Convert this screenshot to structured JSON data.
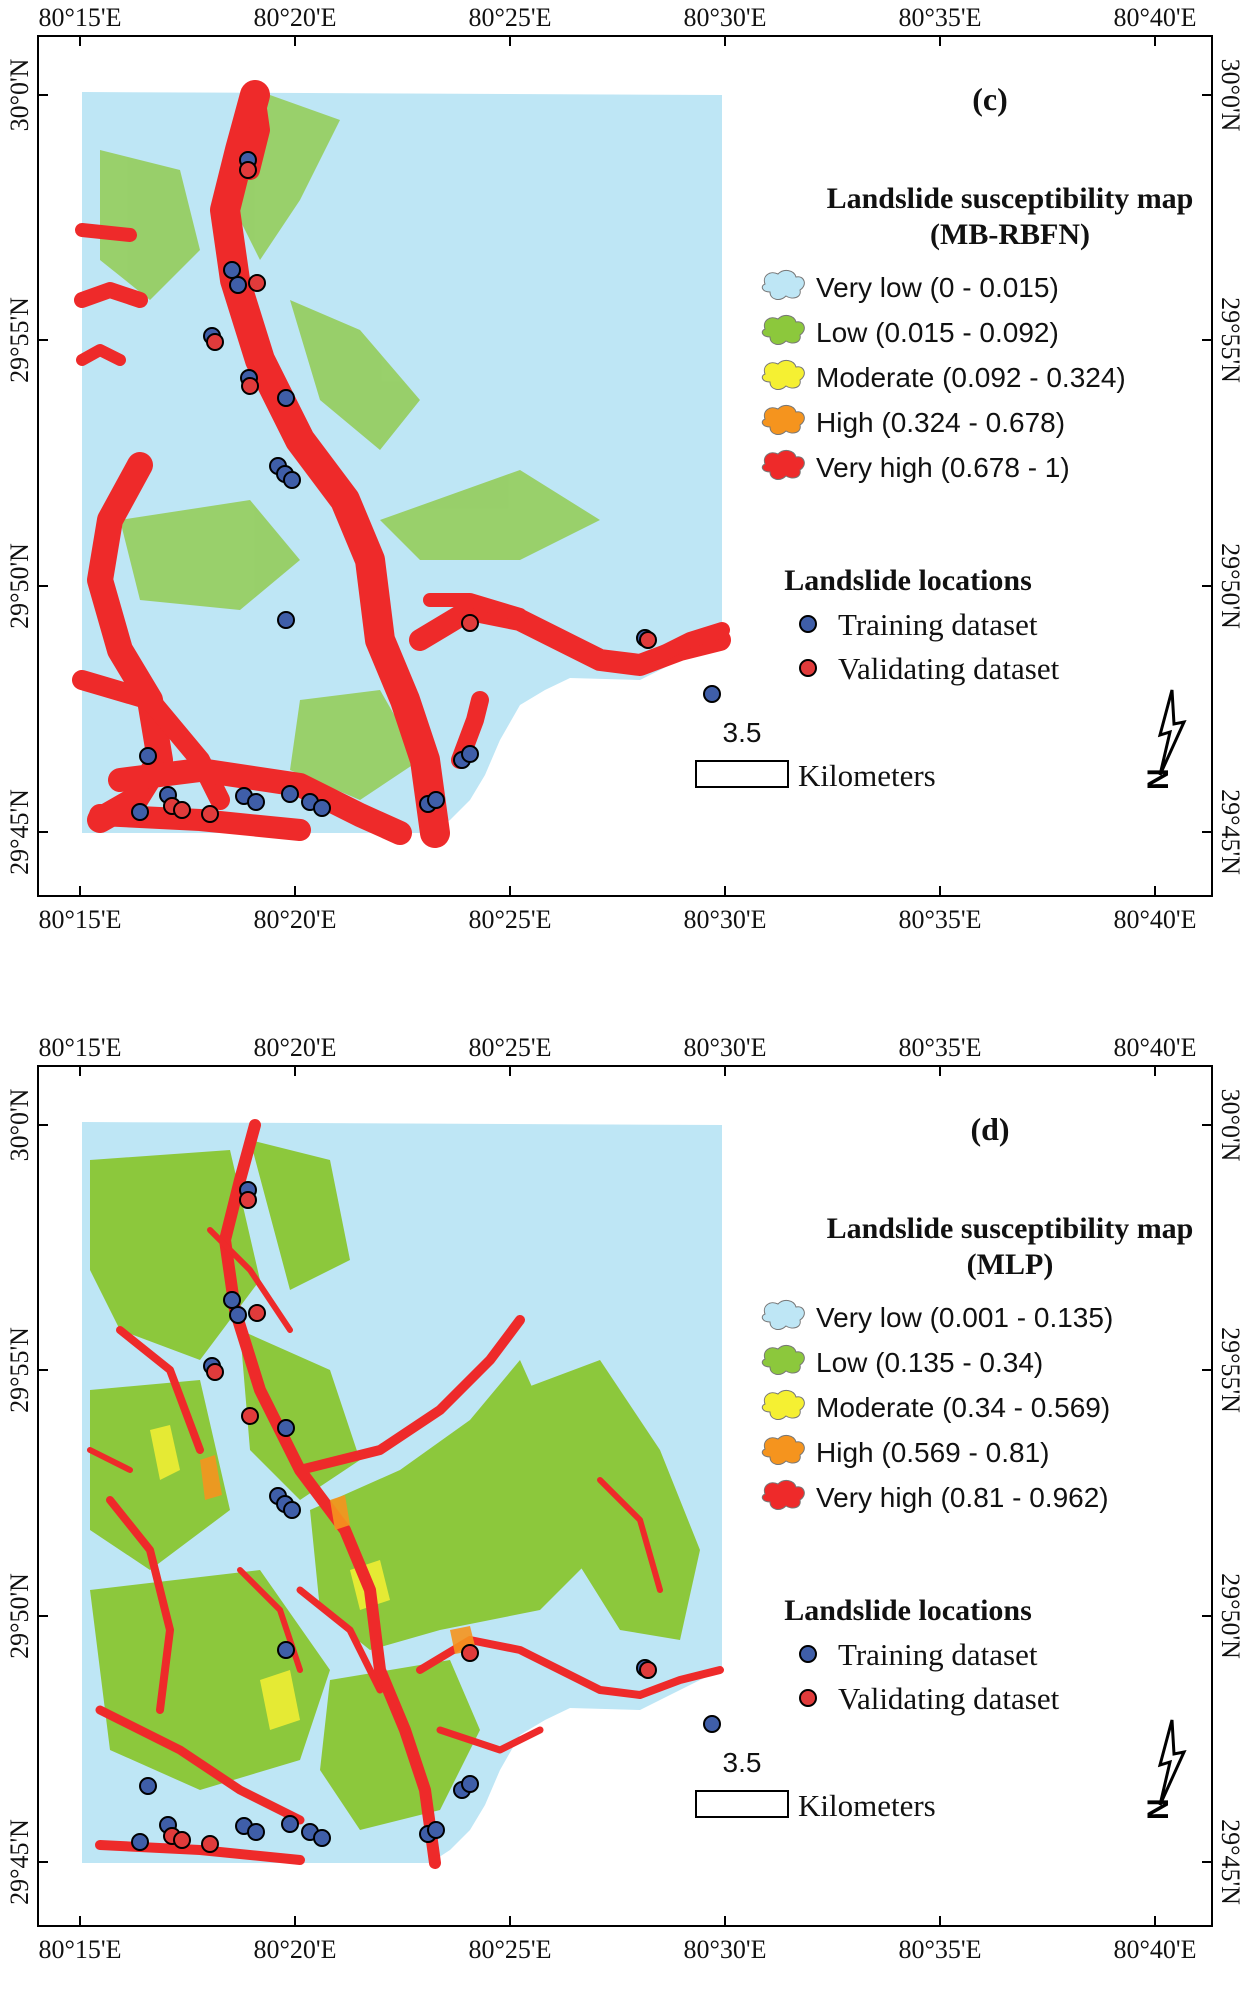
{
  "colors": {
    "very_low": "#bee6f5",
    "low": "#8cc83c",
    "moderate": "#f5f032",
    "high": "#f5941e",
    "very_high": "#ee2a2a",
    "training_point": "#3f5ea8",
    "validating_point": "#e03b3b"
  },
  "axes": {
    "top_labels": [
      "80°15'E",
      "80°20'E",
      "80°25'E",
      "80°30'E",
      "80°35'E",
      "80°40'E"
    ],
    "bottom_labels": [
      "80°15'E",
      "80°20'E",
      "80°25'E",
      "80°30'E",
      "80°35'E",
      "80°40'E"
    ],
    "left_labels": [
      "30°0'N",
      "29°55'N",
      "29°50'N",
      "29°45'N"
    ],
    "right_labels": [
      "30°0'N",
      "29°55'N",
      "29°50'N",
      "29°45'N"
    ]
  },
  "panels": [
    {
      "label": "(c)",
      "legend_title_1": "Landslide susceptibility map",
      "legend_title_2": "(MB-RBFN)",
      "classes": [
        {
          "label": "Very low (0 - 0.015)",
          "color_key": "very_low"
        },
        {
          "label": "Low (0.015 - 0.092)",
          "color_key": "low"
        },
        {
          "label": "Moderate (0.092 - 0.324)",
          "color_key": "moderate"
        },
        {
          "label": "High (0.324 - 0.678)",
          "color_key": "high"
        },
        {
          "label": "Very high (0.678 - 1)",
          "color_key": "very_high"
        }
      ],
      "locations_title": "Landslide locations",
      "training_label": "Training dataset",
      "validating_label": "Validating dataset",
      "scale_value": "3.5",
      "scale_unit": "Kilometers"
    },
    {
      "label": "(d)",
      "legend_title_1": "Landslide susceptibility map",
      "legend_title_2": "(MLP)",
      "classes": [
        {
          "label": "Very low (0.001 - 0.135)",
          "color_key": "very_low"
        },
        {
          "label": "Low (0.135 - 0.34)",
          "color_key": "low"
        },
        {
          "label": "Moderate (0.34 - 0.569)",
          "color_key": "moderate"
        },
        {
          "label": "High (0.569 - 0.81)",
          "color_key": "high"
        },
        {
          "label": "Very high (0.81 - 0.962)",
          "color_key": "very_high"
        }
      ],
      "locations_title": "Landslide locations",
      "training_label": "Training dataset",
      "validating_label": "Validating dataset",
      "scale_value": "3.5",
      "scale_unit": "Kilometers"
    }
  ],
  "north_arrow_letter": "N"
}
